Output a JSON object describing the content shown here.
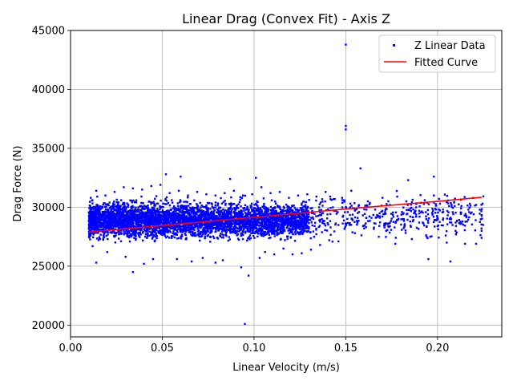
{
  "chart_data": {
    "type": "scatter",
    "title": "Linear Drag (Convex Fit) - Axis Z",
    "xlabel": "Linear Velocity (m/s)",
    "ylabel": "Drag Force (N)",
    "xlim": [
      0.0,
      0.235
    ],
    "ylim": [
      19000,
      45000
    ],
    "xticks": [
      "0.00",
      "0.05",
      "0.10",
      "0.15",
      "0.20"
    ],
    "xtick_values": [
      0.0,
      0.05,
      0.1,
      0.15,
      0.2
    ],
    "yticks": [
      "20000",
      "25000",
      "30000",
      "35000",
      "40000",
      "45000"
    ],
    "ytick_values": [
      20000,
      25000,
      30000,
      35000,
      40000,
      45000
    ],
    "grid": true,
    "legend_position": "top-right",
    "series": [
      {
        "name": "Z Linear Data",
        "kind": "scatter",
        "color": "#0000ff",
        "points": [
          [
            0.15,
            43800
          ],
          [
            0.15,
            36900
          ],
          [
            0.15,
            36600
          ],
          [
            0.158,
            33300
          ],
          [
            0.184,
            32300
          ],
          [
            0.198,
            32600
          ],
          [
            0.052,
            32800
          ],
          [
            0.06,
            32600
          ],
          [
            0.087,
            32400
          ],
          [
            0.101,
            32500
          ],
          [
            0.034,
            24500
          ],
          [
            0.093,
            24900
          ],
          [
            0.097,
            24200
          ],
          [
            0.095,
            20100
          ],
          [
            0.014,
            25300
          ],
          [
            0.04,
            25200
          ],
          [
            0.066,
            25400
          ],
          [
            0.079,
            25300
          ],
          [
            0.195,
            25600
          ],
          [
            0.207,
            25400
          ],
          [
            0.221,
            26900
          ],
          [
            0.224,
            28000
          ],
          [
            0.224,
            27400
          ],
          [
            0.215,
            26900
          ],
          [
            0.21,
            27700
          ],
          [
            0.205,
            27000
          ],
          [
            0.2,
            28400
          ],
          [
            0.196,
            27500
          ],
          [
            0.19,
            28700
          ],
          [
            0.186,
            27300
          ],
          [
            0.181,
            29000
          ],
          [
            0.177,
            26900
          ],
          [
            0.172,
            28000
          ],
          [
            0.168,
            27500
          ],
          [
            0.164,
            29100
          ],
          [
            0.16,
            28200
          ],
          [
            0.155,
            27800
          ],
          [
            0.146,
            27100
          ],
          [
            0.141,
            27200
          ],
          [
            0.136,
            26800
          ],
          [
            0.131,
            26400
          ],
          [
            0.126,
            26100
          ],
          [
            0.121,
            26000
          ],
          [
            0.116,
            26500
          ],
          [
            0.111,
            26000
          ],
          [
            0.106,
            26200
          ],
          [
            0.103,
            25700
          ],
          [
            0.083,
            25500
          ],
          [
            0.072,
            25700
          ],
          [
            0.058,
            25600
          ],
          [
            0.045,
            25600
          ],
          [
            0.03,
            25800
          ],
          [
            0.02,
            26200
          ],
          [
            0.012,
            26700
          ],
          [
            0.213,
            30100
          ],
          [
            0.209,
            30400
          ],
          [
            0.203,
            29800
          ],
          [
            0.198,
            31000
          ],
          [
            0.193,
            30600
          ],
          [
            0.188,
            29700
          ],
          [
            0.183,
            30500
          ],
          [
            0.178,
            30900
          ],
          [
            0.174,
            30200
          ],
          [
            0.17,
            30800
          ],
          [
            0.166,
            29800
          ],
          [
            0.162,
            30500
          ],
          [
            0.157,
            30100
          ],
          [
            0.153,
            31400
          ],
          [
            0.148,
            30800
          ],
          [
            0.144,
            30700
          ],
          [
            0.139,
            31300
          ],
          [
            0.134,
            30900
          ],
          [
            0.129,
            31100
          ],
          [
            0.124,
            31000
          ],
          [
            0.119,
            30800
          ],
          [
            0.114,
            31300
          ],
          [
            0.109,
            31200
          ],
          [
            0.104,
            31700
          ],
          [
            0.099,
            31100
          ],
          [
            0.094,
            31000
          ],
          [
            0.089,
            31400
          ],
          [
            0.084,
            31200
          ],
          [
            0.079,
            31000
          ],
          [
            0.074,
            31100
          ],
          [
            0.069,
            31300
          ],
          [
            0.064,
            31000
          ],
          [
            0.059,
            31400
          ],
          [
            0.054,
            31200
          ],
          [
            0.049,
            31900
          ],
          [
            0.044,
            31800
          ],
          [
            0.039,
            31500
          ],
          [
            0.034,
            31600
          ],
          [
            0.029,
            31700
          ],
          [
            0.024,
            31300
          ],
          [
            0.019,
            31000
          ],
          [
            0.014,
            31400
          ],
          [
            0.011,
            30800
          ]
        ],
        "dense_band": {
          "x_range": [
            0.01,
            0.13
          ],
          "y_center": 28900,
          "y_spread": 1100,
          "count": 4500
        },
        "sparse_band": {
          "x_range": [
            0.13,
            0.225
          ],
          "y_center": 29200,
          "y_spread": 1300,
          "count": 420
        }
      },
      {
        "name": "Fitted Curve",
        "kind": "line",
        "color": "#ff0000",
        "x": [
          0.01,
          0.05,
          0.1,
          0.15,
          0.2,
          0.224
        ],
        "y": [
          27900,
          28450,
          29150,
          29850,
          30500,
          30850
        ]
      }
    ]
  }
}
